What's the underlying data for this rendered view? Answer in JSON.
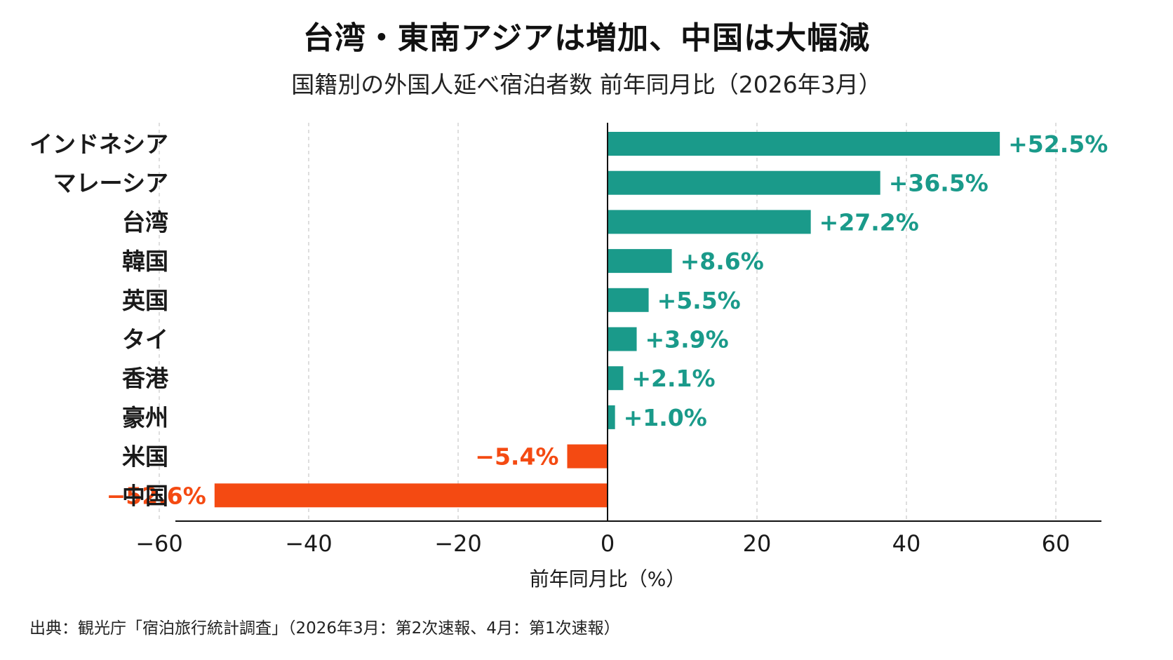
{
  "title": "台湾・東南アジアは増加、中国は大幅減",
  "subtitle": "国籍別の外国人延べ宿泊者数 前年同月比（2026年3月）",
  "source": "出典：観光庁「宿泊旅行統計調査」（2026年3月：第2次速報、4月：第1次速報）",
  "colors": {
    "positive": "#1a9a8a",
    "negative": "#f44a12"
  },
  "chart_data": {
    "type": "bar",
    "orientation": "horizontal",
    "categories": [
      "インドネシア",
      "マレーシア",
      "台湾",
      "韓国",
      "英国",
      "タイ",
      "香港",
      "豪州",
      "米国",
      "中国"
    ],
    "values": [
      52.5,
      36.5,
      27.2,
      8.6,
      5.5,
      3.9,
      2.1,
      1.0,
      -5.4,
      -52.6
    ],
    "value_labels": [
      "+52.5%",
      "+36.5%",
      "+27.2%",
      "+8.6%",
      "+5.5%",
      "+3.9%",
      "+2.1%",
      "+1.0%",
      "−5.4%",
      "−52.6%"
    ],
    "xlabel": "前年同月比（%）",
    "xticks": [
      -60,
      -40,
      -20,
      0,
      20,
      40,
      60
    ],
    "xtick_labels": [
      "−60",
      "−40",
      "−20",
      "0",
      "20",
      "40",
      "60"
    ],
    "xlim": [
      -65,
      67
    ],
    "grid": "vertical dashed"
  }
}
